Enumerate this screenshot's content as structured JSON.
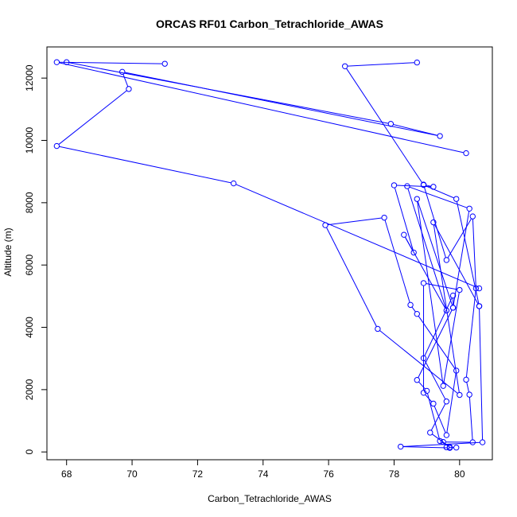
{
  "chart_data": {
    "type": "line",
    "title": "ORCAS RF01 Carbon_Tetrachloride_AWAS",
    "xlabel": "Carbon_Tetrachloride_AWAS",
    "ylabel": "Altitude (m)",
    "xlim": [
      67.4,
      81.0
    ],
    "ylim": [
      -250,
      13000
    ],
    "xticks": [
      68,
      70,
      72,
      74,
      76,
      78,
      80
    ],
    "yticks": [
      0,
      2000,
      4000,
      6000,
      8000,
      10000,
      12000
    ],
    "grid": false,
    "marker": "open-circle",
    "series": [
      {
        "color": "#0000ff",
        "points": [
          [
            78.7,
            12500
          ],
          [
            76.5,
            12380
          ],
          [
            78.9,
            8570
          ],
          [
            79.9,
            8120
          ],
          [
            80.6,
            4680
          ],
          [
            80.7,
            310
          ],
          [
            78.2,
            170
          ],
          [
            79.7,
            130
          ],
          [
            79.9,
            140
          ],
          [
            79.6,
            150
          ],
          [
            79.5,
            320
          ],
          [
            80.4,
            310
          ],
          [
            80.3,
            1840
          ],
          [
            80.2,
            2320
          ],
          [
            80.5,
            5250
          ],
          [
            80.4,
            7560
          ],
          [
            79.6,
            6160
          ],
          [
            78.9,
            8580
          ],
          [
            79.2,
            8510
          ],
          [
            78.0,
            8560
          ],
          [
            78.6,
            6400
          ],
          [
            78.3,
            6970
          ],
          [
            79.6,
            4540
          ],
          [
            78.4,
            8530
          ],
          [
            80.3,
            7810
          ],
          [
            79.8,
            4630
          ],
          [
            79.8,
            5020
          ],
          [
            78.9,
            3010
          ],
          [
            79.6,
            1620
          ],
          [
            79.1,
            620
          ],
          [
            79.7,
            160
          ],
          [
            79.4,
            350
          ],
          [
            79.0,
            1960
          ],
          [
            78.7,
            2310
          ],
          [
            79.8,
            4630
          ],
          [
            78.7,
            8120
          ],
          [
            79.5,
            2120
          ],
          [
            80.0,
            5200
          ],
          [
            78.9,
            5420
          ],
          [
            78.9,
            1900
          ],
          [
            79.2,
            1550
          ],
          [
            79.6,
            540
          ],
          [
            79.9,
            2610
          ],
          [
            78.7,
            4430
          ],
          [
            78.5,
            4720
          ],
          [
            77.7,
            7520
          ],
          [
            75.9,
            7280
          ],
          [
            77.5,
            3950
          ],
          [
            80.0,
            1830
          ],
          [
            79.2,
            7370
          ],
          [
            80.6,
            4680
          ]
        ]
      },
      {
        "color": "#0000ff",
        "points": [
          [
            80.2,
            9590
          ],
          [
            67.7,
            12510
          ],
          [
            71.0,
            12460
          ]
        ]
      },
      {
        "color": "#0000ff",
        "points": [
          [
            68.0,
            12510
          ],
          [
            77.9,
            10530
          ],
          [
            79.4,
            10140
          ],
          [
            69.7,
            12200
          ],
          [
            69.9,
            11650
          ],
          [
            67.7,
            9820
          ],
          [
            73.1,
            8620
          ],
          [
            80.6,
            5250
          ]
        ]
      }
    ]
  }
}
